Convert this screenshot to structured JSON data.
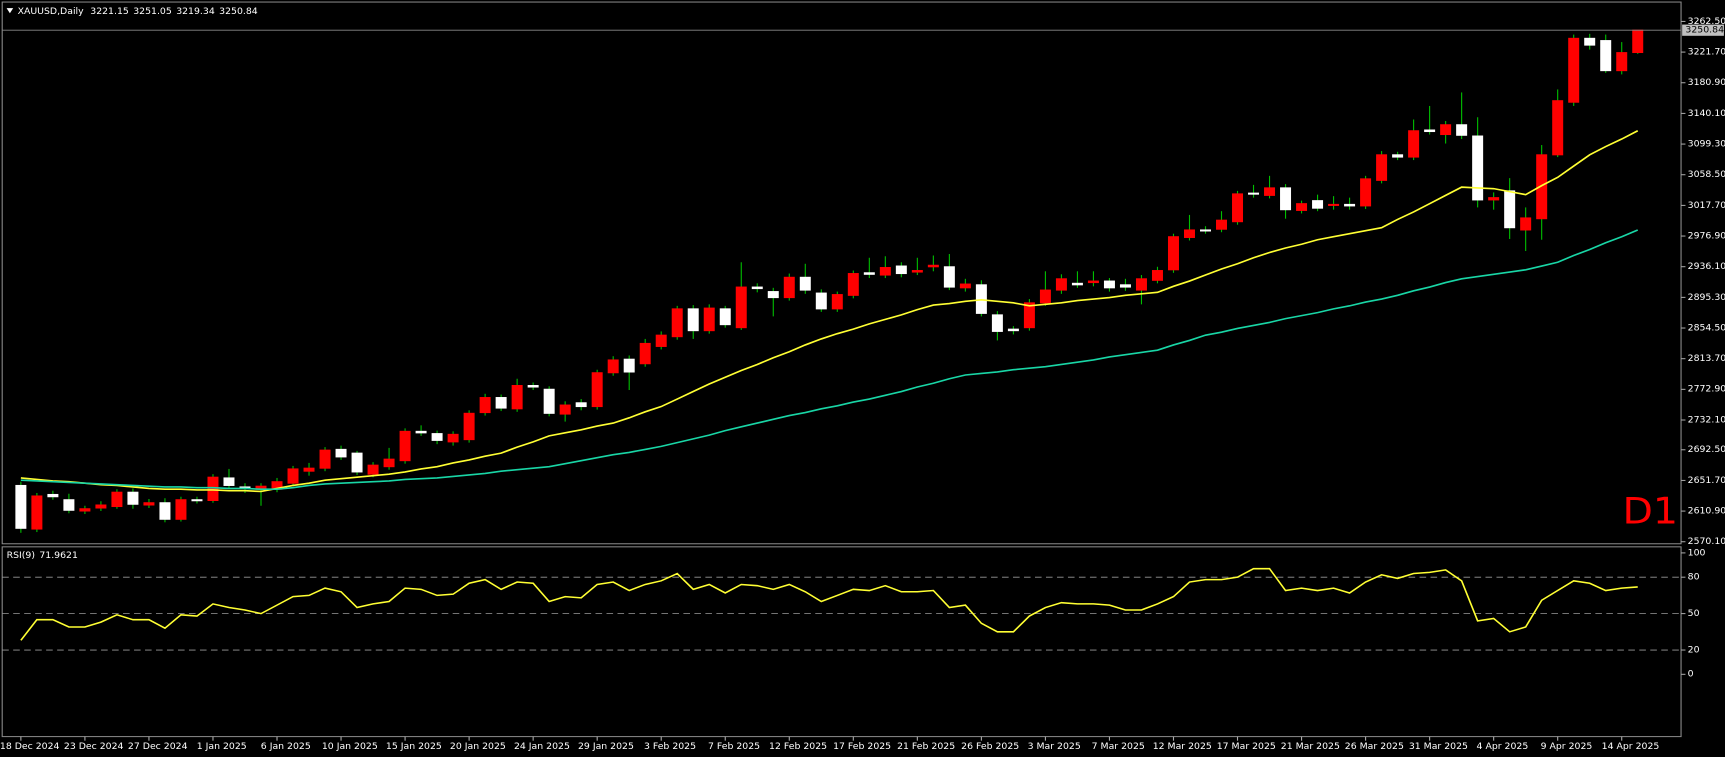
{
  "chart_data": {
    "type": "candlestick",
    "title": "XAUUSD,Daily",
    "x": [
      "18 Dec 2024",
      null,
      null,
      null,
      "23 Dec 2024",
      null,
      null,
      null,
      "27 Dec 2024",
      null,
      null,
      null,
      "1 Jan 2025",
      null,
      null,
      null,
      "6 Jan 2025",
      null,
      null,
      null,
      "10 Jan 2025",
      null,
      null,
      null,
      "15 Jan 2025",
      null,
      null,
      null,
      "20 Jan 2025",
      null,
      null,
      null,
      "24 Jan 2025",
      null,
      null,
      null,
      "29 Jan 2025",
      null,
      null,
      null,
      "3 Feb 2025",
      null,
      null,
      null,
      "7 Feb 2025",
      null,
      null,
      null,
      "12 Feb 2025",
      null,
      null,
      null,
      "17 Feb 2025",
      null,
      null,
      null,
      "21 Feb 2025",
      null,
      null,
      null,
      "26 Feb 2025",
      null,
      null,
      null,
      "3 Mar 2025",
      null,
      null,
      null,
      "7 Mar 2025",
      null,
      null,
      null,
      "12 Mar 2025",
      null,
      null,
      null,
      "17 Mar 2025",
      null,
      null,
      null,
      "21 Mar 2025",
      null,
      null,
      null,
      "26 Mar 2025",
      null,
      null,
      null,
      "31 Mar 2025",
      null,
      null,
      null,
      "4 Apr 2025",
      null,
      null,
      null,
      "9 Apr 2025",
      null,
      null,
      null,
      "14 Apr 2025",
      null
    ],
    "open": [
      2645,
      2587,
      2633,
      2626,
      2611,
      2615,
      2617,
      2636,
      2619,
      2622,
      2600,
      2626,
      2625,
      2655,
      2643,
      2640,
      2640,
      2648,
      2664,
      2668,
      2693,
      2688,
      2660,
      2670,
      2678,
      2717,
      2714,
      2703,
      2706,
      2742,
      2762,
      2747,
      2778,
      2773,
      2740,
      2755,
      2750,
      2795,
      2813,
      2807,
      2830,
      2843,
      2880,
      2851,
      2880,
      2855,
      2909,
      2903,
      2895,
      2922,
      2901,
      2880,
      2898,
      2928,
      2925,
      2937,
      2929,
      2936,
      2936,
      2908,
      2912,
      2872,
      2853,
      2855,
      2888,
      2905,
      2914,
      2915,
      2917,
      2912,
      2905,
      2918,
      2932,
      2975,
      2985,
      2986,
      2996,
      3034,
      3031,
      3041,
      3011,
      3024,
      3018,
      3019,
      3017,
      3051,
      3085,
      3082,
      3118,
      3112,
      3125,
      3110,
      3025,
      3037,
      2985,
      3000,
      3085,
      3155,
      3240,
      3237,
      3197,
      3221.15
    ],
    "high": [
      2650,
      2635,
      2638,
      2634,
      2618,
      2624,
      2640,
      2641,
      2627,
      2628,
      2630,
      2630,
      2660,
      2667,
      2648,
      2648,
      2655,
      2671,
      2675,
      2696,
      2698,
      2691,
      2676,
      2695,
      2721,
      2725,
      2718,
      2717,
      2745,
      2767,
      2766,
      2787,
      2782,
      2777,
      2757,
      2760,
      2799,
      2817,
      2818,
      2840,
      2850,
      2884,
      2885,
      2886,
      2884,
      2942,
      2914,
      2908,
      2927,
      2940,
      2906,
      2903,
      2931,
      2948,
      2950,
      2942,
      2948,
      2951,
      2953,
      2920,
      2918,
      2877,
      2857,
      2893,
      2930,
      2926,
      2930,
      2930,
      2921,
      2920,
      2925,
      2936,
      2980,
      3005,
      2990,
      3010,
      3037,
      3045,
      3057,
      3046,
      3024,
      3032,
      3030,
      3028,
      3057,
      3090,
      3089,
      3132,
      3150,
      3130,
      3168,
      3135,
      3035,
      3054,
      3015,
      3098,
      3172,
      3245,
      3246,
      3245,
      3235,
      3251.05
    ],
    "low": [
      2582,
      2583,
      2626,
      2608,
      2607,
      2611,
      2614,
      2614,
      2615,
      2596,
      2597,
      2621,
      2622,
      2641,
      2635,
      2618,
      2636,
      2644,
      2658,
      2664,
      2679,
      2659,
      2656,
      2666,
      2674,
      2711,
      2700,
      2698,
      2702,
      2738,
      2744,
      2743,
      2772,
      2737,
      2730,
      2745,
      2746,
      2791,
      2772,
      2803,
      2826,
      2839,
      2840,
      2847,
      2855,
      2852,
      2902,
      2870,
      2891,
      2900,
      2876,
      2876,
      2894,
      2921,
      2921,
      2922,
      2925,
      2930,
      2905,
      2903,
      2870,
      2838,
      2846,
      2851,
      2884,
      2900,
      2908,
      2910,
      2903,
      2904,
      2886,
      2914,
      2928,
      2971,
      2980,
      2982,
      2992,
      3028,
      3027,
      3000,
      3007,
      3010,
      3012,
      3012,
      3013,
      3047,
      3078,
      3078,
      3112,
      3100,
      3106,
      3015,
      3012,
      2973,
      2957,
      2972,
      3082,
      3150,
      3225,
      3194,
      3192,
      3219.34
    ],
    "close": [
      2588,
      2631,
      2630,
      2612,
      2614,
      2619,
      2636,
      2620,
      2622,
      2600,
      2626,
      2625,
      2656,
      2645,
      2641,
      2644,
      2650,
      2667,
      2668,
      2692,
      2683,
      2663,
      2672,
      2680,
      2717,
      2715,
      2705,
      2713,
      2741,
      2762,
      2748,
      2778,
      2776,
      2741,
      2752,
      2750,
      2795,
      2812,
      2796,
      2834,
      2845,
      2880,
      2851,
      2881,
      2859,
      2909,
      2907,
      2895,
      2922,
      2905,
      2880,
      2899,
      2927,
      2926,
      2935,
      2927,
      2931,
      2938,
      2909,
      2913,
      2874,
      2850,
      2851,
      2888,
      2905,
      2920,
      2912,
      2917,
      2908,
      2909,
      2920,
      2931,
      2976,
      2985,
      2984,
      2998,
      3033,
      3033,
      3041,
      3012,
      3020,
      3014,
      3019,
      3017,
      3053,
      3085,
      3082,
      3117,
      3116,
      3125,
      3111,
      3025,
      3028,
      2988,
      3001,
      3085,
      3157,
      3240,
      3231,
      3197,
      3221,
      3250.84
    ],
    "up_color": "#ff0000",
    "down_color": "#ffffff",
    "wick_color": "#00c000",
    "ylim": [
      2567.4,
      3288.3
    ],
    "yticks": [
      {
        "value": 3262.5,
        "label": "3262.50"
      },
      {
        "value": 3221.7,
        "label": "3221.70"
      },
      {
        "value": 3180.9,
        "label": "3180.90"
      },
      {
        "value": 3140.1,
        "label": "3140.10"
      },
      {
        "value": 3099.3,
        "label": "3099.30"
      },
      {
        "value": 3058.5,
        "label": "3058.50"
      },
      {
        "value": 3017.7,
        "label": "3017.70"
      },
      {
        "value": 2976.9,
        "label": "2976.90"
      },
      {
        "value": 2936.1,
        "label": "2936.10"
      },
      {
        "value": 2895.3,
        "label": "2895.30"
      },
      {
        "value": 2854.5,
        "label": "2854.50"
      },
      {
        "value": 2813.7,
        "label": "2813.70"
      },
      {
        "value": 2772.9,
        "label": "2772.90"
      },
      {
        "value": 2732.1,
        "label": "2732.10"
      },
      {
        "value": 2692.5,
        "label": "2692.50"
      },
      {
        "value": 2651.7,
        "label": "2651.70"
      },
      {
        "value": 2610.9,
        "label": "2610.90"
      },
      {
        "value": 2570.1,
        "label": "2570.10"
      }
    ],
    "series": [
      {
        "color": "#ffff33",
        "values": [
          2655,
          2653,
          2651,
          2650,
          2648,
          2646,
          2645,
          2643,
          2641,
          2640,
          2640,
          2639,
          2639,
          2638,
          2638,
          2637,
          2641,
          2645,
          2648,
          2652,
          2654,
          2656,
          2658,
          2660,
          2663,
          2667,
          2670,
          2675,
          2679,
          2684,
          2688,
          2696,
          2703,
          2711,
          2715,
          2719,
          2724,
          2728,
          2735,
          2743,
          2750,
          2760,
          2770,
          2780,
          2789,
          2798,
          2806,
          2815,
          2823,
          2832,
          2840,
          2847,
          2853,
          2860,
          2866,
          2872,
          2879,
          2885,
          2887,
          2890,
          2892,
          2890,
          2888,
          2884,
          2886,
          2888,
          2891,
          2893,
          2895,
          2898,
          2900,
          2902,
          2910,
          2917,
          2925,
          2933,
          2940,
          2948,
          2955,
          2961,
          2966,
          2972,
          2976,
          2980,
          2984,
          2988,
          2999,
          3009,
          3020,
          3031,
          3042,
          3041,
          3040,
          3036,
          3032,
          3044,
          3055,
          3070,
          3085,
          3096,
          3106,
          3117
        ]
      },
      {
        "color": "#19d6a6",
        "values": [
          2652,
          2651,
          2650,
          2649,
          2648,
          2647,
          2646,
          2645,
          2644,
          2643,
          2643,
          2642,
          2642,
          2641,
          2641,
          2640,
          2640,
          2642,
          2645,
          2647,
          2648,
          2649,
          2650,
          2651,
          2653,
          2654,
          2655,
          2657,
          2659,
          2661,
          2664,
          2666,
          2668,
          2670,
          2674,
          2678,
          2682,
          2686,
          2689,
          2693,
          2697,
          2702,
          2707,
          2712,
          2718,
          2723,
          2728,
          2733,
          2738,
          2742,
          2747,
          2751,
          2756,
          2760,
          2765,
          2770,
          2776,
          2781,
          2787,
          2792,
          2794,
          2796,
          2799,
          2801,
          2803,
          2806,
          2809,
          2812,
          2816,
          2819,
          2822,
          2825,
          2832,
          2838,
          2845,
          2849,
          2854,
          2858,
          2862,
          2867,
          2871,
          2875,
          2880,
          2884,
          2889,
          2893,
          2898,
          2904,
          2909,
          2915,
          2920,
          2923,
          2926,
          2929,
          2932,
          2937,
          2942,
          2951,
          2959,
          2968,
          2976,
          2985
        ]
      }
    ],
    "timeframe": "D1",
    "timeframe_color": "#ff0000",
    "indicator": {
      "title": "RSI(9)",
      "color": "#ffff33",
      "values": [
        28,
        45,
        45,
        39,
        39,
        43,
        49,
        45,
        45,
        38,
        49,
        48,
        58,
        55,
        53,
        50,
        57,
        64,
        65,
        71,
        68,
        55,
        58,
        60,
        71,
        70,
        65,
        66,
        75,
        78,
        70,
        76,
        75,
        60,
        64,
        63,
        74,
        76,
        69,
        74,
        77,
        83,
        70,
        74,
        67,
        74,
        73,
        70,
        74,
        68,
        60,
        65,
        70,
        69,
        73,
        68,
        68,
        69,
        55,
        57,
        42,
        35,
        35,
        48,
        55,
        59,
        58,
        58,
        57,
        53,
        53,
        58,
        64,
        76,
        78,
        78,
        80,
        87,
        87,
        69,
        71,
        69,
        71,
        67,
        76,
        82,
        79,
        83,
        84,
        86,
        77,
        44,
        46,
        35,
        39,
        61,
        69,
        77,
        75,
        69,
        71,
        71.9621
      ],
      "ylim": [
        -51.3,
        105
      ],
      "yticks": [
        100,
        80,
        50,
        20,
        0
      ],
      "levels": [
        80,
        50,
        20
      ]
    }
  }
}
